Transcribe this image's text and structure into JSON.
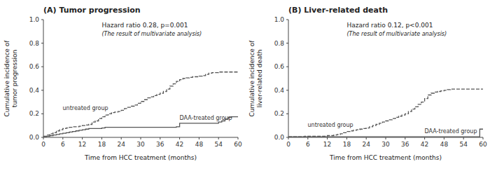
{
  "chart_data": [
    {
      "type": "step",
      "title": "(A) Tumor progression",
      "x_label": "Time from HCC treatment (months)",
      "y_label": "Cumulative incidence of\ntumor progression",
      "annotations": [
        "Hazard ratio 0.28, p=0.001",
        "(The result of multivariate analysis)"
      ],
      "x": [
        0,
        1,
        2,
        3,
        4,
        5,
        6,
        7,
        8,
        9,
        10,
        11,
        12,
        13,
        14,
        15,
        16,
        17,
        18,
        19,
        20,
        21,
        22,
        23,
        24,
        25,
        26,
        27,
        28,
        29,
        30,
        31,
        32,
        33,
        34,
        35,
        36,
        37,
        38,
        39,
        40,
        41,
        42,
        43,
        44,
        45,
        46,
        47,
        48,
        49,
        50,
        51,
        52,
        53,
        54,
        55,
        56,
        57,
        58,
        59,
        60
      ],
      "series": [
        {
          "name": "untreated group",
          "color": "#555555",
          "line_style": "dashed",
          "values": [
            0.01,
            0.02,
            0.03,
            0.04,
            0.055,
            0.065,
            0.075,
            0.08,
            0.085,
            0.09,
            0.09,
            0.095,
            0.1,
            0.105,
            0.11,
            0.13,
            0.14,
            0.16,
            0.175,
            0.19,
            0.2,
            0.21,
            0.215,
            0.22,
            0.23,
            0.245,
            0.255,
            0.265,
            0.275,
            0.29,
            0.305,
            0.32,
            0.335,
            0.345,
            0.355,
            0.365,
            0.375,
            0.39,
            0.41,
            0.435,
            0.455,
            0.475,
            0.49,
            0.5,
            0.505,
            0.51,
            0.515,
            0.515,
            0.52,
            0.525,
            0.535,
            0.545,
            0.55,
            0.55,
            0.555,
            0.555,
            0.555,
            0.555,
            0.555,
            0.555,
            0.555
          ]
        },
        {
          "name": "DAA-treated group",
          "color": "#555555",
          "line_style": "solid",
          "values": [
            0.005,
            0.01,
            0.015,
            0.02,
            0.025,
            0.03,
            0.035,
            0.04,
            0.045,
            0.05,
            0.055,
            0.06,
            0.065,
            0.07,
            0.075,
            0.075,
            0.075,
            0.075,
            0.08,
            0.085,
            0.085,
            0.085,
            0.085,
            0.085,
            0.085,
            0.085,
            0.085,
            0.085,
            0.085,
            0.085,
            0.085,
            0.085,
            0.085,
            0.085,
            0.085,
            0.085,
            0.085,
            0.085,
            0.085,
            0.085,
            0.085,
            0.09,
            0.12,
            0.12,
            0.12,
            0.12,
            0.12,
            0.12,
            0.12,
            0.12,
            0.12,
            0.12,
            0.12,
            0.12,
            0.13,
            0.14,
            0.155,
            0.17,
            0.175,
            0.175,
            0.175
          ]
        }
      ],
      "xlim": [
        0,
        60
      ],
      "xticks": [
        0,
        6,
        12,
        18,
        24,
        30,
        36,
        42,
        48,
        54,
        60
      ],
      "ylim": [
        0.0,
        1.0
      ],
      "yticks": [
        {
          "value": 0.0,
          "label": "0.0"
        },
        0.2,
        0.4,
        0.6,
        0.8,
        {
          "value": 1.0,
          "label": "1.0"
        }
      ],
      "grid": false
    },
    {
      "type": "step",
      "title": "(B) Liver-related death",
      "x_label": "Time from HCC treatment (months)",
      "y_label": "Cumulative incidence of\nliver-related death",
      "annotations": [
        "Hazard ratio 0.12, p<0.001",
        "(The result of multivariate analysis)"
      ],
      "x": [
        0,
        1,
        2,
        3,
        4,
        5,
        6,
        7,
        8,
        9,
        10,
        11,
        12,
        13,
        14,
        15,
        16,
        17,
        18,
        19,
        20,
        21,
        22,
        23,
        24,
        25,
        26,
        27,
        28,
        29,
        30,
        31,
        32,
        33,
        34,
        35,
        36,
        37,
        38,
        39,
        40,
        41,
        42,
        43,
        44,
        45,
        46,
        47,
        48,
        49,
        50,
        51,
        52,
        53,
        54,
        55,
        56,
        57,
        58,
        59,
        60
      ],
      "series": [
        {
          "name": "untreated group",
          "color": "#555555",
          "line_style": "dashed",
          "values": [
            0.005,
            0.005,
            0.005,
            0.005,
            0.005,
            0.01,
            0.01,
            0.01,
            0.01,
            0.01,
            0.01,
            0.01,
            0.015,
            0.015,
            0.02,
            0.025,
            0.03,
            0.04,
            0.05,
            0.055,
            0.06,
            0.065,
            0.07,
            0.075,
            0.08,
            0.09,
            0.1,
            0.11,
            0.12,
            0.13,
            0.14,
            0.15,
            0.16,
            0.17,
            0.18,
            0.19,
            0.2,
            0.22,
            0.24,
            0.26,
            0.28,
            0.3,
            0.33,
            0.36,
            0.375,
            0.385,
            0.39,
            0.395,
            0.4,
            0.405,
            0.41,
            0.41,
            0.41,
            0.41,
            0.41,
            0.41,
            0.41,
            0.41,
            0.41,
            0.41,
            0.41
          ]
        },
        {
          "name": "DAA-treated group",
          "color": "#555555",
          "line_style": "solid",
          "values": [
            0.005,
            0.005,
            0.005,
            0.005,
            0.005,
            0.005,
            0.005,
            0.005,
            0.005,
            0.005,
            0.005,
            0.005,
            0.005,
            0.005,
            0.005,
            0.005,
            0.005,
            0.005,
            0.005,
            0.005,
            0.005,
            0.005,
            0.005,
            0.005,
            0.005,
            0.005,
            0.005,
            0.005,
            0.005,
            0.005,
            0.005,
            0.005,
            0.005,
            0.005,
            0.005,
            0.005,
            0.005,
            0.005,
            0.005,
            0.005,
            0.005,
            0.005,
            0.005,
            0.005,
            0.005,
            0.005,
            0.005,
            0.005,
            0.005,
            0.005,
            0.005,
            0.005,
            0.005,
            0.005,
            0.005,
            0.005,
            0.005,
            0.005,
            0.005,
            0.07,
            0.07
          ]
        }
      ],
      "xlim": [
        0,
        60
      ],
      "xticks": [
        0,
        6,
        12,
        18,
        24,
        30,
        36,
        42,
        48,
        54,
        60
      ],
      "ylim": [
        0.0,
        1.0
      ],
      "yticks": [
        {
          "value": 0.0,
          "label": "0.0"
        },
        0.2,
        0.4,
        0.6,
        0.8,
        {
          "value": 1.0,
          "label": "1.0"
        }
      ],
      "grid": false
    }
  ]
}
